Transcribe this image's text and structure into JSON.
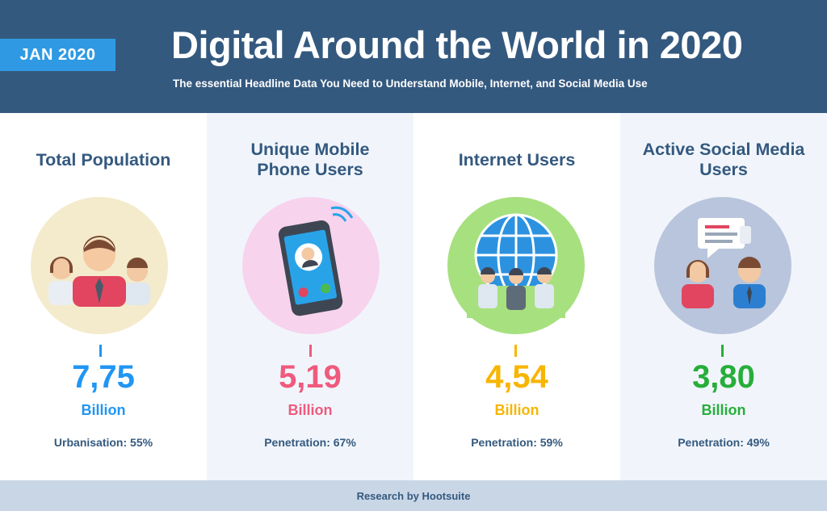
{
  "header": {
    "badge": "JAN 2020",
    "title": "Digital Around the World in 2020",
    "subtitle": "The essential Headline Data You Need to Understand Mobile, Internet, and Social Media Use"
  },
  "stats": [
    {
      "title": "Total Population",
      "value": "7,75",
      "unit": "Billion",
      "note": "Urbanisation: 55%",
      "color": "#2196f3",
      "circle": "#f3ebcc",
      "icon": "people-icon"
    },
    {
      "title": "Unique Mobile Phone Users",
      "value": "5,19",
      "unit": "Billion",
      "note": "Penetration: 67%",
      "color": "#ef5a7d",
      "circle": "#f7d3ee",
      "icon": "smartphone-icon"
    },
    {
      "title": "Internet Users",
      "value": "4,54",
      "unit": "Billion",
      "note": "Penetration: 59%",
      "color": "#f7b500",
      "circle": "#a7e07f",
      "icon": "globe-users-icon"
    },
    {
      "title": "Active Social Media Users",
      "value": "3,80",
      "unit": "Billion",
      "note": "Penetration: 49%",
      "color": "#27ae3a",
      "circle": "#b8c5dc",
      "icon": "chat-users-icon"
    }
  ],
  "footer": {
    "credit": "Research by Hootsuite"
  }
}
